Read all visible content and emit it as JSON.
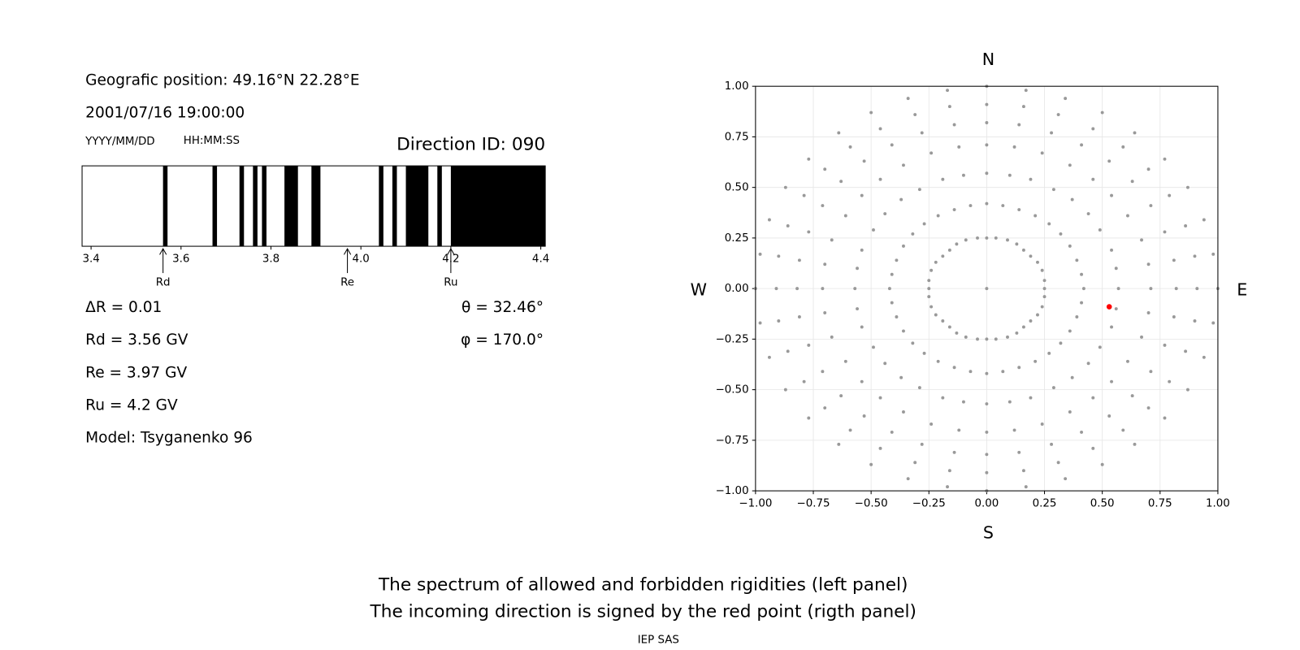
{
  "header": {
    "position": "Geografic position: 49.16°N 22.28°E",
    "datetime": "2001/07/16 19:00:00",
    "date_format": "YYYY/MM/DD",
    "time_format": "HH:MM:SS",
    "direction_id": "Direction ID: 090"
  },
  "parameters": [
    "ΔR = 0.01",
    "Rd = 3.56 GV",
    "Re = 3.97 GV",
    "Ru = 4.2 GV",
    "Model: Tsyganenko 96"
  ],
  "angles": [
    "θ = 32.46°",
    "φ = 170.0°"
  ],
  "compass": {
    "north": "N",
    "south": "S",
    "west": "W",
    "east": "E"
  },
  "caption": [
    "The spectrum of allowed and forbidden rigidities (left panel)",
    "The incoming direction is signed by the red point (rigth panel)"
  ],
  "credit": "IEP SAS",
  "chart_data": [
    {
      "type": "spectrum",
      "intervals": [
        [
          3.56,
          3.57
        ],
        [
          3.67,
          3.68
        ],
        [
          3.73,
          3.74
        ],
        [
          3.76,
          3.77
        ],
        [
          3.78,
          3.79
        ],
        [
          3.83,
          3.86
        ],
        [
          3.89,
          3.91
        ],
        [
          4.04,
          4.05
        ],
        [
          4.07,
          4.08
        ],
        [
          4.1,
          4.15
        ],
        [
          4.17,
          4.18
        ],
        [
          4.2,
          4.41
        ]
      ],
      "color": "#000000",
      "xlim": [
        3.38,
        4.41
      ],
      "xticks": [
        3.4,
        3.6,
        3.8,
        {
          "value": 4,
          "label": "4.0"
        },
        4.2,
        4.4
      ],
      "markers": [
        {
          "label": "Rd",
          "value": 3.56
        },
        {
          "label": "Re",
          "value": 3.97
        },
        {
          "label": "Ru",
          "value": 4.2
        }
      ]
    },
    {
      "type": "scatter",
      "xlim": [
        -1,
        1
      ],
      "ylim": [
        -1,
        1
      ],
      "xticks": [
        {
          "value": -1,
          "label": "−1.00"
        },
        {
          "value": -0.75,
          "label": "−0.75"
        },
        {
          "value": -0.5,
          "label": "−0.50"
        },
        {
          "value": -0.25,
          "label": "−0.25"
        },
        {
          "value": 0,
          "label": "0.00"
        },
        {
          "value": 0.25,
          "label": "0.25"
        },
        {
          "value": 0.5,
          "label": "0.50"
        },
        {
          "value": 0.75,
          "label": "0.75"
        },
        {
          "value": 1,
          "label": "1.00"
        }
      ],
      "yticks": [
        {
          "value": -1,
          "label": "−1.00"
        },
        {
          "value": -0.75,
          "label": "−0.75"
        },
        {
          "value": -0.5,
          "label": "−0.50"
        },
        {
          "value": -0.25,
          "label": "−0.25"
        },
        {
          "value": 0,
          "label": "0.00"
        },
        {
          "value": 0.25,
          "label": "0.25"
        },
        {
          "value": 0.5,
          "label": "0.50"
        },
        {
          "value": 0.75,
          "label": "0.75"
        },
        {
          "value": 1,
          "label": "1.00"
        }
      ],
      "grid": true,
      "series": [
        {
          "color": "#999999",
          "x": [
            0,
            0,
            0.04,
            0.09,
            0.13,
            0.16,
            0.19,
            0.22,
            0.24,
            0.25,
            0.25,
            0.25,
            0.24,
            0.22,
            0.19,
            0.16,
            0.13,
            0.09,
            0.04,
            0,
            -0.04,
            -0.09,
            -0.13,
            -0.16,
            -0.19,
            -0.22,
            -0.24,
            -0.25,
            -0.25,
            -0.25,
            -0.24,
            -0.22,
            -0.19,
            -0.16,
            -0.13,
            -0.09,
            -0.04,
            0,
            0.07,
            0.14,
            0.21,
            0.27,
            0.32,
            0.36,
            0.39,
            0.41,
            0.42,
            0.41,
            0.39,
            0.36,
            0.32,
            0.27,
            0.21,
            0.14,
            0.07,
            0,
            -0.07,
            -0.14,
            -0.21,
            -0.27,
            -0.32,
            -0.36,
            -0.39,
            -0.41,
            -0.42,
            -0.41,
            -0.39,
            -0.36,
            -0.32,
            -0.27,
            -0.21,
            -0.14,
            -0.07,
            0,
            0.1,
            0.19,
            0.29,
            0.37,
            0.44,
            0.49,
            0.54,
            0.56,
            0.57,
            0.56,
            0.54,
            0.49,
            0.44,
            0.37,
            0.29,
            0.19,
            0.1,
            0,
            -0.1,
            -0.19,
            -0.29,
            -0.37,
            -0.44,
            -0.49,
            -0.54,
            -0.56,
            -0.57,
            -0.56,
            -0.54,
            -0.49,
            -0.44,
            -0.37,
            -0.29,
            -0.19,
            -0.1,
            0,
            0.12,
            0.24,
            0.36,
            0.46,
            0.54,
            0.61,
            0.67,
            0.7,
            0.71,
            0.7,
            0.67,
            0.61,
            0.54,
            0.46,
            0.36,
            0.24,
            0.12,
            0,
            -0.12,
            -0.24,
            -0.36,
            -0.46,
            -0.54,
            -0.61,
            -0.67,
            -0.7,
            -0.71,
            -0.7,
            -0.67,
            -0.61,
            -0.54,
            -0.46,
            -0.36,
            -0.24,
            -0.12,
            0,
            0.14,
            0.28,
            0.41,
            0.53,
            0.63,
            0.71,
            0.77,
            0.81,
            0.82,
            0.81,
            0.77,
            0.71,
            0.63,
            0.53,
            0.41,
            0.28,
            0.14,
            0,
            -0.14,
            -0.28,
            -0.41,
            -0.53,
            -0.63,
            -0.71,
            -0.77,
            -0.81,
            -0.82,
            -0.81,
            -0.77,
            -0.71,
            -0.63,
            -0.53,
            -0.41,
            -0.28,
            -0.14,
            0,
            0.16,
            0.31,
            0.46,
            0.59,
            0.7,
            0.79,
            0.86,
            0.9,
            0.91,
            0.9,
            0.86,
            0.79,
            0.7,
            0.59,
            0.46,
            0.31,
            0.16,
            0,
            -0.16,
            -0.31,
            -0.46,
            -0.59,
            -0.7,
            -0.79,
            -0.86,
            -0.9,
            -0.91,
            -0.9,
            -0.86,
            -0.79,
            -0.7,
            -0.59,
            -0.46,
            -0.31,
            -0.16,
            0,
            0.17,
            0.34,
            0.5,
            0.64,
            0.77,
            0.87,
            0.94,
            0.98,
            1,
            0.98,
            0.94,
            0.87,
            0.77,
            0.64,
            0.5,
            0.34,
            0.17,
            0,
            -0.17,
            -0.34,
            -0.5,
            -0.64,
            -0.77,
            -0.87,
            -0.94,
            -0.98,
            -1,
            -0.98,
            -0.94,
            -0.87,
            -0.77,
            -0.64,
            -0.5,
            -0.34,
            -0.17
          ],
          "y": [
            0,
            0.25,
            0.25,
            0.24,
            0.22,
            0.19,
            0.16,
            0.13,
            0.09,
            0.04,
            0,
            -0.04,
            -0.09,
            -0.13,
            -0.16,
            -0.19,
            -0.22,
            -0.24,
            -0.25,
            -0.25,
            -0.25,
            -0.24,
            -0.22,
            -0.19,
            -0.16,
            -0.13,
            -0.09,
            -0.04,
            0,
            0.04,
            0.09,
            0.13,
            0.16,
            0.19,
            0.22,
            0.24,
            0.25,
            0.42,
            0.41,
            0.39,
            0.36,
            0.32,
            0.27,
            0.21,
            0.14,
            0.07,
            0,
            -0.07,
            -0.14,
            -0.21,
            -0.27,
            -0.32,
            -0.36,
            -0.39,
            -0.41,
            -0.42,
            -0.41,
            -0.39,
            -0.36,
            -0.32,
            -0.27,
            -0.21,
            -0.14,
            -0.07,
            0,
            0.07,
            0.14,
            0.21,
            0.27,
            0.32,
            0.36,
            0.39,
            0.41,
            0.57,
            0.56,
            0.54,
            0.49,
            0.44,
            0.37,
            0.29,
            0.19,
            0.1,
            0,
            -0.1,
            -0.19,
            -0.29,
            -0.37,
            -0.44,
            -0.49,
            -0.54,
            -0.56,
            -0.57,
            -0.56,
            -0.54,
            -0.49,
            -0.44,
            -0.37,
            -0.29,
            -0.19,
            -0.1,
            0,
            0.1,
            0.19,
            0.29,
            0.37,
            0.44,
            0.49,
            0.54,
            0.56,
            0.71,
            0.7,
            0.67,
            0.61,
            0.54,
            0.46,
            0.36,
            0.24,
            0.12,
            0,
            -0.12,
            -0.24,
            -0.36,
            -0.46,
            -0.54,
            -0.61,
            -0.67,
            -0.7,
            -0.71,
            -0.7,
            -0.67,
            -0.61,
            -0.54,
            -0.46,
            -0.36,
            -0.24,
            -0.12,
            0,
            0.12,
            0.24,
            0.36,
            0.46,
            0.54,
            0.61,
            0.67,
            0.7,
            0.82,
            0.81,
            0.77,
            0.71,
            0.63,
            0.53,
            0.41,
            0.28,
            0.14,
            0,
            -0.14,
            -0.28,
            -0.41,
            -0.53,
            -0.63,
            -0.71,
            -0.77,
            -0.81,
            -0.82,
            -0.81,
            -0.77,
            -0.71,
            -0.63,
            -0.53,
            -0.41,
            -0.28,
            -0.14,
            0,
            0.14,
            0.28,
            0.41,
            0.53,
            0.63,
            0.71,
            0.77,
            0.81,
            0.91,
            0.9,
            0.86,
            0.79,
            0.7,
            0.59,
            0.46,
            0.31,
            0.16,
            0,
            -0.16,
            -0.31,
            -0.46,
            -0.59,
            -0.7,
            -0.79,
            -0.86,
            -0.9,
            -0.91,
            -0.9,
            -0.86,
            -0.79,
            -0.7,
            -0.59,
            -0.46,
            -0.31,
            -0.16,
            0,
            0.16,
            0.31,
            0.46,
            0.59,
            0.7,
            0.79,
            0.86,
            0.9,
            1,
            0.98,
            0.94,
            0.87,
            0.77,
            0.64,
            0.5,
            0.34,
            0.17,
            0,
            -0.17,
            -0.34,
            -0.5,
            -0.64,
            -0.77,
            -0.87,
            -0.94,
            -0.98,
            -1,
            -0.98,
            -0.94,
            -0.87,
            -0.77,
            -0.64,
            -0.5,
            -0.34,
            -0.17,
            0,
            0.17,
            0.34,
            0.5,
            0.64,
            0.77,
            0.87,
            0.94,
            0.98
          ]
        },
        {
          "color": "#ff0000",
          "x": [
            0.53
          ],
          "y": [
            -0.09
          ]
        }
      ]
    }
  ]
}
